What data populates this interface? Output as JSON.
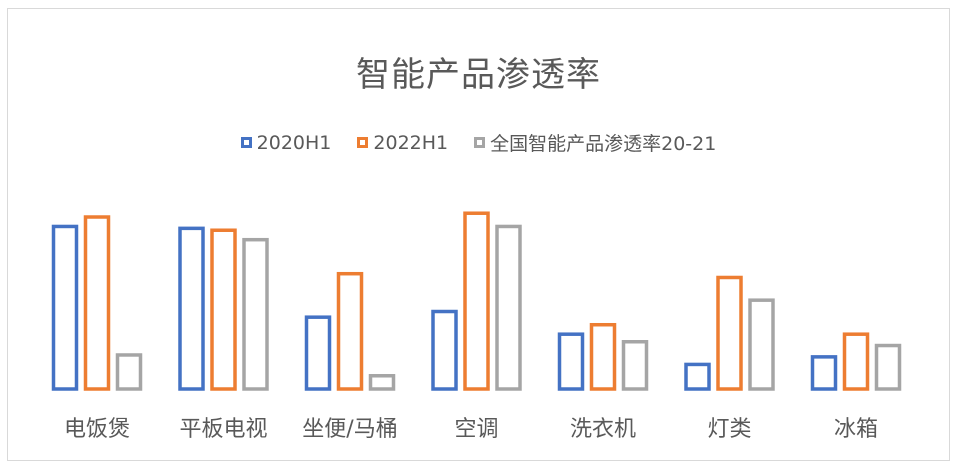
{
  "chart_data": {
    "type": "bar",
    "title": "智能产品渗透率",
    "categories": [
      "电饭煲",
      "平板电视",
      "坐便/马桶",
      "空调",
      "洗衣机",
      "灯类",
      "冰箱"
    ],
    "series": [
      {
        "name": "2020H1",
        "color": "#4472C4",
        "values": [
          0.86,
          0.85,
          0.38,
          0.41,
          0.29,
          0.13,
          0.17
        ]
      },
      {
        "name": "2022H1",
        "color": "#ED7D31",
        "values": [
          0.91,
          0.84,
          0.61,
          0.93,
          0.34,
          0.59,
          0.29
        ]
      },
      {
        "name": "全国智能产品渗透率20-21",
        "color": "#A5A5A5",
        "values": [
          0.18,
          0.79,
          0.07,
          0.86,
          0.25,
          0.47,
          0.23
        ]
      }
    ],
    "ylim": [
      0,
      1
    ],
    "legend_position": "top",
    "grid": false,
    "style": "hollow-bars"
  }
}
